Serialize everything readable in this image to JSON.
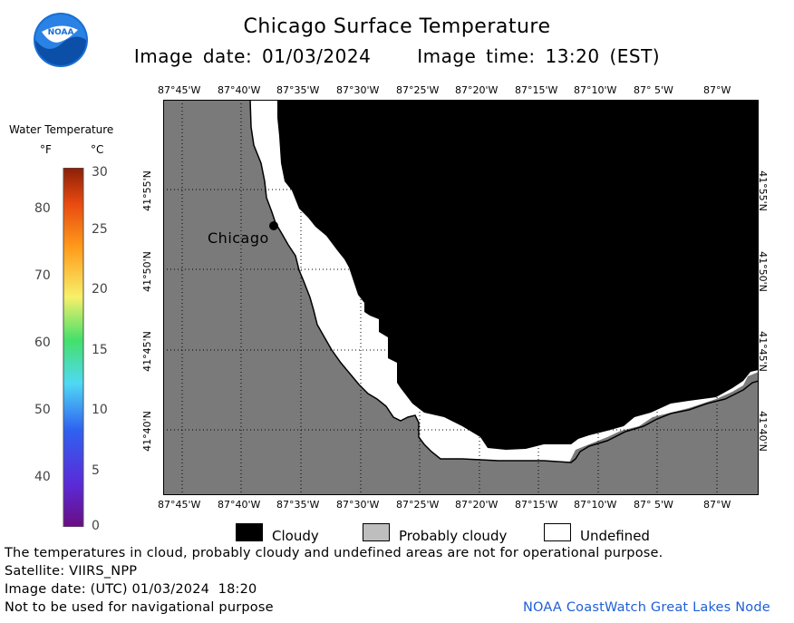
{
  "header": {
    "title": "Chicago Surface Temperature",
    "image_date": "Image date: 01/03/2024",
    "image_time": "Image time: 13:20 (EST)"
  },
  "logo": {
    "text": "NOAA",
    "icon": "noaa-logo-icon"
  },
  "colorbar": {
    "title": "Water Temperature",
    "unit_f": "°F",
    "unit_c": "°C",
    "f_ticks": [
      "80",
      "70",
      "60",
      "50",
      "40"
    ],
    "c_ticks": [
      "30",
      "25",
      "20",
      "15",
      "10",
      "5",
      "0"
    ]
  },
  "map": {
    "lon_ticks": [
      "87°45'W",
      "87°40'W",
      "87°35'W",
      "87°30'W",
      "87°25'W",
      "87°20'W",
      "87°15'W",
      "87°10'W",
      "87° 5'W",
      "87°W"
    ],
    "lat_ticks": [
      "41°55'N",
      "41°50'N",
      "41°45'N",
      "41°40'N"
    ],
    "city_label": "Chicago"
  },
  "legend": {
    "cloudy": "Cloudy",
    "probably_cloudy": "Probably cloudy",
    "undefined": "Undefined",
    "colors": {
      "cloudy": "#000000",
      "probably_cloudy": "#bebebe",
      "undefined": "#ffffff",
      "land": "#7a7a7a"
    }
  },
  "footer": {
    "disclaimer": "The temperatures in cloud, probably cloudy and undefined areas are not for operational purpose.",
    "satellite": "Satellite: VIIRS_NPP",
    "utc_date": "Image date: (UTC) 01/03/2024  18:20",
    "nav": "Not to be used for navigational purpose",
    "node": "NOAA CoastWatch Great Lakes Node"
  }
}
